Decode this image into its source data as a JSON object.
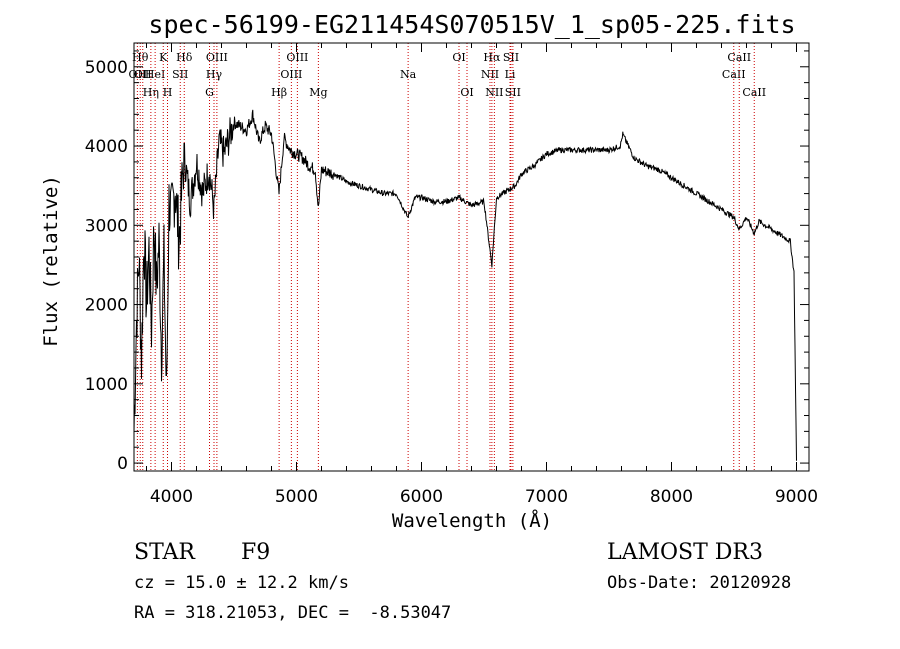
{
  "chart_data": {
    "type": "line",
    "title": "spec-56199-EG211454S070515V_1_sp05-225.fits",
    "xlabel": "Wavelength (Å)",
    "ylabel": "Flux (relative)",
    "xlim": [
      3700,
      9100
    ],
    "ylim": [
      -100,
      5300
    ],
    "x_ticks": [
      4000,
      5000,
      6000,
      7000,
      8000,
      9000
    ],
    "x_tick_labels": [
      "4000",
      "5000",
      "6000",
      "7000",
      "8000",
      "9000"
    ],
    "y_ticks": [
      0,
      1000,
      2000,
      3000,
      4000,
      5000
    ],
    "y_tick_labels": [
      "0",
      "1000",
      "2000",
      "3000",
      "4000",
      "5000"
    ],
    "series": [
      {
        "name": "flux",
        "x": [
          3700,
          3720,
          3740,
          3760,
          3780,
          3800,
          3820,
          3840,
          3860,
          3880,
          3900,
          3920,
          3940,
          3960,
          3980,
          4000,
          4030,
          4060,
          4100,
          4150,
          4200,
          4250,
          4300,
          4340,
          4380,
          4420,
          4460,
          4500,
          4550,
          4600,
          4650,
          4700,
          4750,
          4800,
          4860,
          4900,
          4950,
          5000,
          5050,
          5100,
          5150,
          5175,
          5200,
          5300,
          5400,
          5500,
          5600,
          5700,
          5800,
          5890,
          5950,
          6000,
          6100,
          6200,
          6300,
          6400,
          6500,
          6563,
          6600,
          6650,
          6700,
          6750,
          6800,
          6900,
          7000,
          7100,
          7200,
          7300,
          7400,
          7500,
          7590,
          7610,
          7700,
          7800,
          7900,
          8000,
          8100,
          8200,
          8300,
          8400,
          8498,
          8542,
          8600,
          8662,
          8700,
          8800,
          8900,
          8950,
          8980,
          9000
        ],
        "y": [
          400,
          1800,
          2600,
          1300,
          2900,
          2000,
          2700,
          1700,
          3000,
          2200,
          2800,
          1400,
          2600,
          800,
          3300,
          3100,
          3500,
          2800,
          3900,
          3300,
          3800,
          3400,
          3700,
          3200,
          4050,
          3900,
          4100,
          4300,
          4250,
          4200,
          4400,
          4050,
          4250,
          4150,
          3400,
          4100,
          3950,
          3900,
          3850,
          3750,
          3700,
          3200,
          3700,
          3650,
          3550,
          3500,
          3450,
          3400,
          3400,
          3100,
          3350,
          3350,
          3300,
          3300,
          3350,
          3250,
          3300,
          2500,
          3350,
          3400,
          3450,
          3500,
          3650,
          3750,
          3900,
          3950,
          3950,
          3950,
          3950,
          3950,
          4000,
          4150,
          3850,
          3750,
          3700,
          3600,
          3500,
          3400,
          3300,
          3200,
          3100,
          2950,
          3100,
          2900,
          3050,
          2950,
          2850,
          2800,
          2400,
          30
        ]
      }
    ],
    "line_markers": [
      {
        "wavelength": 3727,
        "label": "OII",
        "row": 2
      },
      {
        "wavelength": 3750,
        "label": "Hθ",
        "row": 1
      },
      {
        "wavelength": 3770,
        "label": "OII",
        "row": 2
      },
      {
        "wavelength": 3835,
        "label": "Hη",
        "row": 3
      },
      {
        "wavelength": 3869,
        "label": "HeI",
        "row": 2
      },
      {
        "wavelength": 3934,
        "label": "K",
        "row": 1
      },
      {
        "wavelength": 3968,
        "label": "H",
        "row": 3
      },
      {
        "wavelength": 4070,
        "label": "SII",
        "row": 2
      },
      {
        "wavelength": 4102,
        "label": "Hδ",
        "row": 1
      },
      {
        "wavelength": 4304,
        "label": "G",
        "row": 3
      },
      {
        "wavelength": 4340,
        "label": "Hγ",
        "row": 2
      },
      {
        "wavelength": 4363,
        "label": "OIII",
        "row": 1
      },
      {
        "wavelength": 4861,
        "label": "Hβ",
        "row": 3
      },
      {
        "wavelength": 4959,
        "label": "OIII",
        "row": 2
      },
      {
        "wavelength": 5007,
        "label": "OIII",
        "row": 1
      },
      {
        "wavelength": 5175,
        "label": "Mg",
        "row": 3
      },
      {
        "wavelength": 5893,
        "label": "Na",
        "row": 2
      },
      {
        "wavelength": 6300,
        "label": "OI",
        "row": 1
      },
      {
        "wavelength": 6364,
        "label": "OI",
        "row": 3
      },
      {
        "wavelength": 6548,
        "label": "NII",
        "row": 2
      },
      {
        "wavelength": 6563,
        "label": "Hα",
        "row": 1
      },
      {
        "wavelength": 6583,
        "label": "NII",
        "row": 3
      },
      {
        "wavelength": 6708,
        "label": "Li",
        "row": 2
      },
      {
        "wavelength": 6716,
        "label": "SII",
        "row": 1
      },
      {
        "wavelength": 6731,
        "label": "SII",
        "row": 3
      },
      {
        "wavelength": 8498,
        "label": "CaII",
        "row": 2
      },
      {
        "wavelength": 8542,
        "label": "CaII",
        "row": 1
      },
      {
        "wavelength": 8662,
        "label": "CaII",
        "row": 3
      }
    ]
  },
  "info": {
    "object_class": "STAR",
    "subclass": "F9",
    "survey": "LAMOST DR3",
    "cz": "cz = 15.0 ± 12.2 km/s",
    "obs_date": "Obs-Date: 20120928",
    "coords": "RA = 318.21053, DEC =  -8.53047"
  },
  "colors": {
    "axis": "#000000",
    "spectrum": "#000000",
    "marker_lines": "#cc0000"
  }
}
